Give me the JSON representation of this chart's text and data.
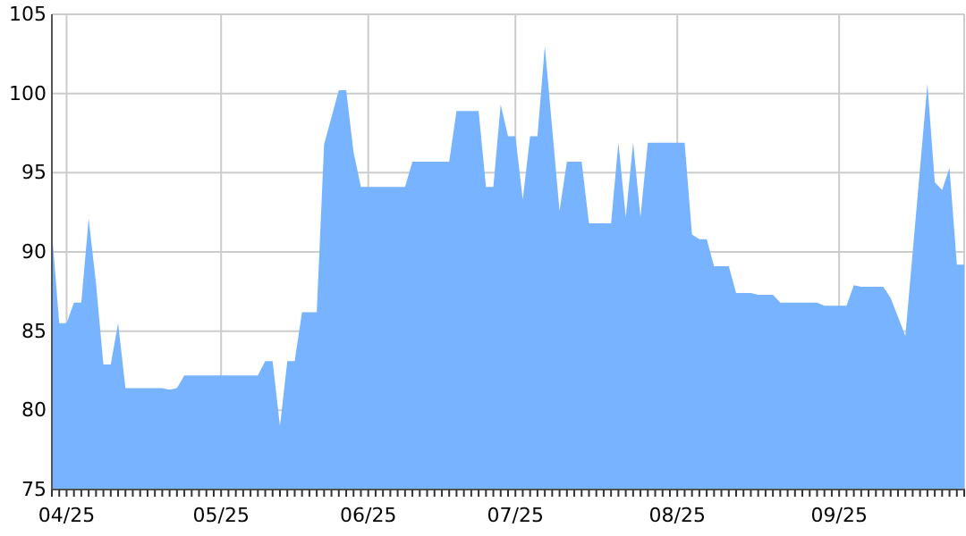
{
  "chart_data": {
    "type": "area",
    "categories": [
      null,
      null,
      "04/25",
      null,
      null,
      null,
      null,
      null,
      null,
      null,
      null,
      null,
      null,
      null,
      null,
      null,
      null,
      null,
      null,
      null,
      null,
      null,
      null,
      "05/25",
      null,
      null,
      null,
      null,
      null,
      null,
      null,
      null,
      null,
      null,
      null,
      null,
      null,
      null,
      null,
      null,
      null,
      null,
      null,
      "06/25",
      null,
      null,
      null,
      null,
      null,
      null,
      null,
      null,
      null,
      null,
      null,
      null,
      null,
      null,
      null,
      null,
      null,
      null,
      null,
      "07/25",
      null,
      null,
      null,
      null,
      null,
      null,
      null,
      null,
      null,
      null,
      null,
      null,
      null,
      null,
      null,
      null,
      null,
      null,
      null,
      null,
      null,
      "08/25",
      null,
      null,
      null,
      null,
      null,
      null,
      null,
      null,
      null,
      null,
      null,
      null,
      null,
      null,
      null,
      null,
      null,
      null,
      null,
      null,
      null,
      "09/25",
      null,
      null,
      null,
      null,
      null,
      null,
      null,
      null,
      null,
      null,
      null,
      null,
      null,
      null,
      null,
      null,
      null
    ],
    "series": [
      {
        "color": "#77b3ff",
        "values": [
          91.3,
          85.5,
          85.5,
          86.8,
          86.8,
          92.1,
          88.0,
          82.9,
          82.9,
          85.5,
          81.4,
          81.4,
          81.4,
          81.4,
          81.4,
          81.4,
          81.3,
          81.4,
          82.2,
          82.2,
          82.2,
          82.2,
          82.2,
          82.2,
          82.2,
          82.2,
          82.2,
          82.2,
          82.2,
          83.1,
          83.1,
          79.0,
          83.1,
          83.1,
          86.2,
          86.2,
          86.2,
          96.8,
          98.5,
          100.2,
          100.2,
          96.3,
          94.1,
          94.1,
          94.1,
          94.1,
          94.1,
          94.1,
          94.1,
          95.7,
          95.7,
          95.7,
          95.7,
          95.7,
          95.7,
          98.9,
          98.9,
          98.9,
          98.9,
          94.1,
          94.1,
          99.3,
          97.3,
          97.3,
          93.3,
          97.3,
          97.3,
          103.0,
          97.8,
          92.6,
          95.7,
          95.7,
          95.7,
          91.8,
          91.8,
          91.8,
          91.8,
          96.9,
          92.2,
          96.9,
          92.2,
          96.9,
          96.9,
          96.9,
          96.9,
          96.9,
          96.9,
          91.1,
          90.8,
          90.8,
          89.1,
          89.1,
          89.1,
          87.4,
          87.4,
          87.4,
          87.3,
          87.3,
          87.3,
          86.8,
          86.8,
          86.8,
          86.8,
          86.8,
          86.8,
          86.6,
          86.6,
          86.6,
          86.6,
          87.9,
          87.8,
          87.8,
          87.8,
          87.8,
          87.1,
          85.9,
          84.7,
          90.0,
          95.3,
          100.6,
          94.4,
          93.9,
          95.3,
          89.2,
          89.2
        ]
      }
    ],
    "ylim": [
      75,
      105
    ],
    "yticks": [
      75,
      80,
      85,
      90,
      95,
      100,
      105
    ],
    "grid": true
  }
}
